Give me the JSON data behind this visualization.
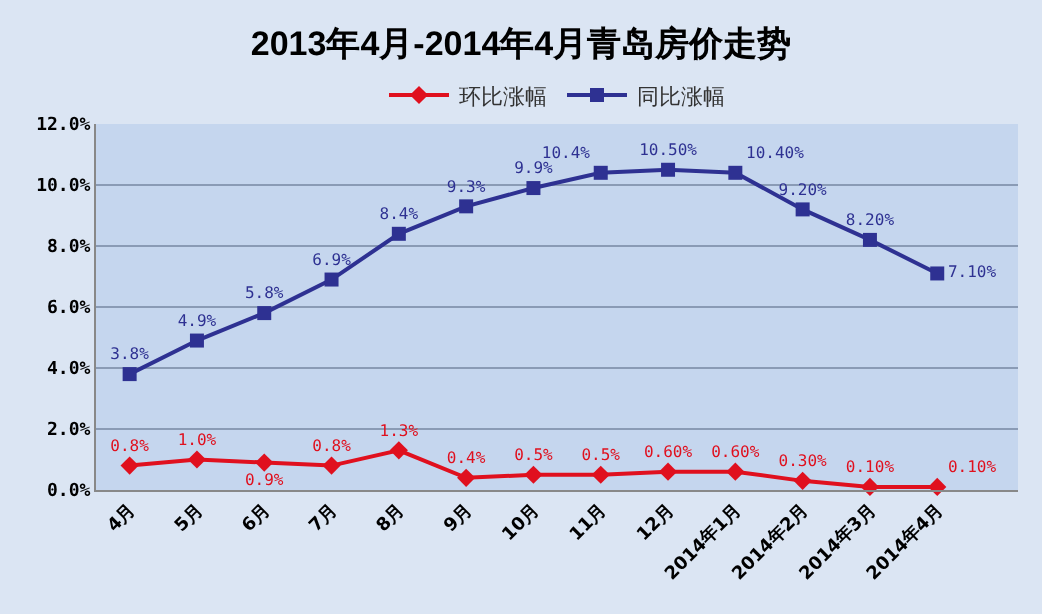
{
  "chart_data": {
    "type": "line",
    "title": "2013年4月-2014年4月青岛房价走势",
    "categories": [
      "4月",
      "5月",
      "6月",
      "7月",
      "8月",
      "9月",
      "10月",
      "11月",
      "12月",
      "2014年1月",
      "2014年2月",
      "2014年3月",
      "2014年4月"
    ],
    "series": [
      {
        "name": "环比涨幅",
        "color": "#e0101e",
        "marker": "diamond",
        "values": [
          0.8,
          1.0,
          0.9,
          0.8,
          1.3,
          0.4,
          0.5,
          0.5,
          0.6,
          0.6,
          0.3,
          0.1,
          0.1
        ],
        "value_labels": [
          "0.8%",
          "1.0%",
          "0.9%",
          "0.8%",
          "1.3%",
          "0.4%",
          "0.5%",
          "0.5%",
          "0.60%",
          "0.60%",
          "0.30%",
          "0.10%",
          "0.10%"
        ]
      },
      {
        "name": "同比涨幅",
        "color": "#2e3192",
        "marker": "square",
        "values": [
          3.8,
          4.9,
          5.8,
          6.9,
          8.4,
          9.3,
          9.9,
          10.4,
          10.5,
          10.4,
          9.2,
          8.2,
          7.1
        ],
        "value_labels": [
          "3.8%",
          "4.9%",
          "5.8%",
          "6.9%",
          "8.4%",
          "9.3%",
          "9.9%",
          "10.4%",
          "10.50%",
          "10.40%",
          "9.20%",
          "8.20%",
          "7.10%"
        ]
      }
    ],
    "ylim": [
      0,
      12
    ],
    "yticks": [
      {
        "value": 0,
        "label": "0.0%"
      },
      {
        "value": 2,
        "label": "2.0%"
      },
      {
        "value": 4,
        "label": "4.0%"
      },
      {
        "value": 6,
        "label": "6.0%"
      },
      {
        "value": 8,
        "label": "8.0%"
      },
      {
        "value": 10,
        "label": "10.0%"
      },
      {
        "value": 12,
        "label": "12.0%"
      }
    ],
    "grid": "y",
    "legend": "top"
  }
}
